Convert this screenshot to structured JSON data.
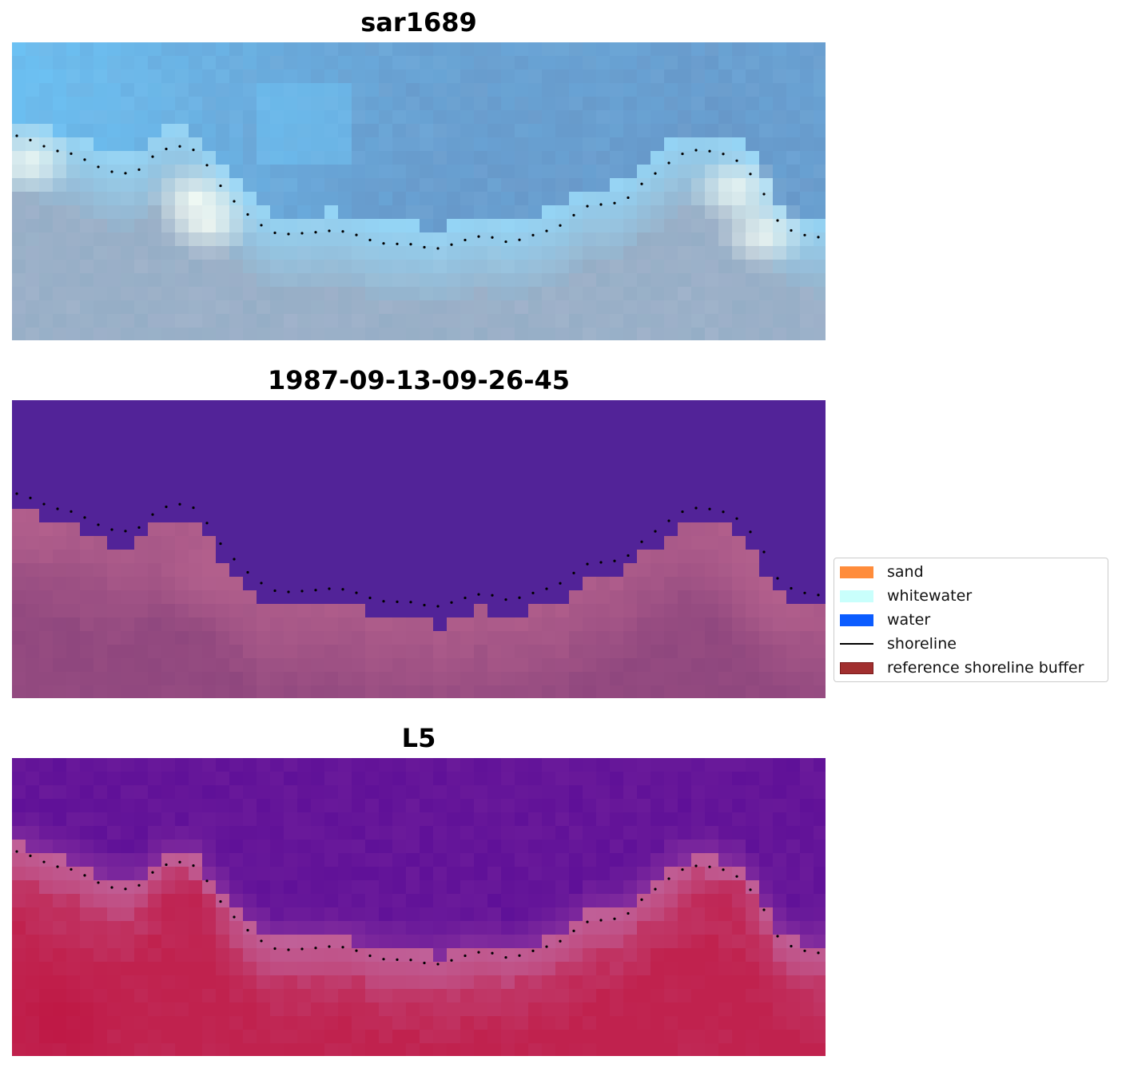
{
  "panels": [
    {
      "title": "sar1689",
      "kind": "rgb"
    },
    {
      "title": "1987-09-13-09-26-45",
      "kind": "classified"
    },
    {
      "title": "L5",
      "kind": "index"
    }
  ],
  "legend": {
    "items": [
      {
        "label": "sand",
        "type": "patch",
        "color": "#ff8c3b",
        "edge": "#ff8c3b"
      },
      {
        "label": "whitewater",
        "type": "patch",
        "color": "#c9fffc",
        "edge": "#c9fffc"
      },
      {
        "label": "water",
        "type": "patch",
        "color": "#0b5cff",
        "edge": "#0b5cff"
      },
      {
        "label": "shoreline",
        "type": "line",
        "color": "#000000"
      },
      {
        "label": "reference shoreline buffer",
        "type": "patch",
        "color": "#a12f2f",
        "edge": "#7a1c1c"
      }
    ]
  },
  "colors": {
    "rgb_sky": "#6cc3f5",
    "rgb_ocean": "#6797c8",
    "rgb_surf": "#f2fbf4",
    "rgb_land": "#95aec6",
    "class_water": "#522398",
    "class_land": "#8f477e",
    "class_land_light": "#b9648f",
    "index_water": "#6a1a9a",
    "index_land": "#c0224e",
    "index_transition": "#c06098",
    "shoreline": "#000000"
  }
}
